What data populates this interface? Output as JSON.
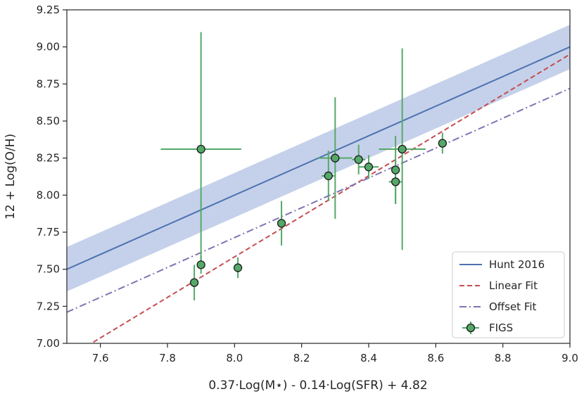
{
  "chart_data": {
    "type": "scatter",
    "title": "",
    "xlabel": "0.37·Log(M⋆) - 0.14·Log(SFR) + 4.82",
    "ylabel": "12 + Log(O/H)",
    "xlim": [
      7.5,
      9.0
    ],
    "ylim": [
      7.0,
      9.25
    ],
    "xticks": [
      7.6,
      7.8,
      8.0,
      8.2,
      8.4,
      8.6,
      8.8,
      9.0
    ],
    "xtick_labels": [
      "7.6",
      "7.8",
      "8.0",
      "8.2",
      "8.4",
      "8.6",
      "8.8",
      "9.0"
    ],
    "yticks": [
      7.0,
      7.25,
      7.5,
      7.75,
      8.0,
      8.25,
      8.5,
      8.75,
      9.0,
      9.25
    ],
    "ytick_labels": [
      "7.00",
      "7.25",
      "7.50",
      "7.75",
      "8.00",
      "8.25",
      "8.50",
      "8.75",
      "9.00",
      "9.25"
    ],
    "grid": false,
    "legend_position": "lower-right",
    "colors": {
      "hunt": "#4c72b0",
      "hunt_band": "#c5d1ea",
      "linear": "#c44e52",
      "offset": "#8172b2",
      "figs": "#55a868",
      "axis": "#262626"
    },
    "lines": [
      {
        "name": "Hunt 2016",
        "style": "solid",
        "x": [
          7.5,
          9.0
        ],
        "y": [
          7.5,
          9.0
        ],
        "band_halfwidth": 0.15
      },
      {
        "name": "Linear Fit",
        "style": "dashed",
        "x": [
          7.5,
          9.0
        ],
        "y": [
          6.9,
          8.95
        ]
      },
      {
        "name": "Offset Fit",
        "style": "dashdot",
        "x": [
          7.5,
          9.0
        ],
        "y": [
          7.21,
          8.72
        ]
      }
    ],
    "points": {
      "name": "FIGS",
      "data": [
        {
          "x": 7.9,
          "y": 8.31,
          "xerr": 0.12,
          "yerr_low": 0.79,
          "yerr_high": 0.79
        },
        {
          "x": 7.9,
          "y": 7.53,
          "xerr": 0.0,
          "yerr_low": 0.06,
          "yerr_high": 0.06
        },
        {
          "x": 7.88,
          "y": 7.41,
          "xerr": 0.0,
          "yerr_low": 0.12,
          "yerr_high": 0.12
        },
        {
          "x": 8.01,
          "y": 7.51,
          "xerr": 0.0,
          "yerr_low": 0.07,
          "yerr_high": 0.07
        },
        {
          "x": 8.14,
          "y": 7.81,
          "xerr": 0.0,
          "yerr_low": 0.15,
          "yerr_high": 0.15
        },
        {
          "x": 8.28,
          "y": 8.13,
          "xerr": 0.02,
          "yerr_low": 0.17,
          "yerr_high": 0.17
        },
        {
          "x": 8.3,
          "y": 8.25,
          "xerr": 0.05,
          "yerr_low": 0.41,
          "yerr_high": 0.41
        },
        {
          "x": 8.37,
          "y": 8.24,
          "xerr": 0.02,
          "yerr_low": 0.1,
          "yerr_high": 0.1
        },
        {
          "x": 8.4,
          "y": 8.19,
          "xerr": 0.03,
          "yerr_low": 0.08,
          "yerr_high": 0.08
        },
        {
          "x": 8.48,
          "y": 8.17,
          "xerr": 0.0,
          "yerr_low": 0.23,
          "yerr_high": 0.23
        },
        {
          "x": 8.48,
          "y": 8.09,
          "xerr": 0.02,
          "yerr_low": 0.15,
          "yerr_high": 0.15
        },
        {
          "x": 8.5,
          "y": 8.31,
          "xerr": 0.07,
          "yerr_low": 0.68,
          "yerr_high": 0.68
        },
        {
          "x": 8.62,
          "y": 8.35,
          "xerr": 0.0,
          "yerr_low": 0.07,
          "yerr_high": 0.07
        }
      ]
    },
    "legend": [
      "Hunt 2016",
      "Linear Fit",
      "Offset Fit",
      "FIGS"
    ]
  }
}
